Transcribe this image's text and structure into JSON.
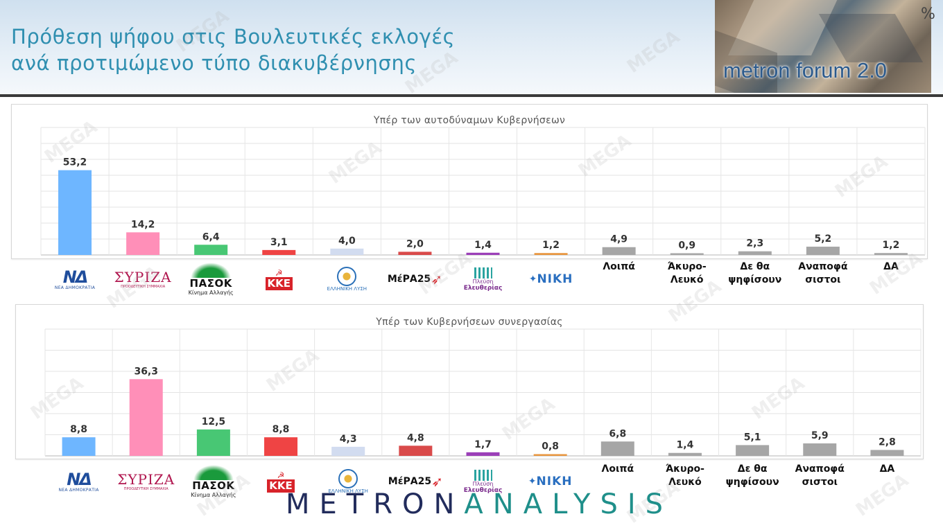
{
  "header": {
    "title_line1": "Πρόθεση ψήφου στις Βουλευτικές εκλογές",
    "title_line2": "ανά προτιμώμενο τύπο διακυβέρνησης",
    "logo_text": "metron forum 2.0",
    "unit": "%"
  },
  "watermark_text": "MEGA",
  "footer": {
    "logo_part1": "METRON",
    "logo_part2": "ANALYSIS"
  },
  "party_logos": {
    "nd": {
      "mark": "ΝΔ",
      "sub": "ΝΕΑ ΔΗΜΟΚΡΑΤΙΑ"
    },
    "syriza": {
      "mark": "ΣΥΡΙΖΑ",
      "sub": "ΠΡΟΟΔΕΥΤΙΚΗ ΣΥΜΜΑΧΙΑ"
    },
    "pasok": {
      "mark": "ΠΑΣΟΚ",
      "sub": "Κίνημα Αλλαγής"
    },
    "kke": {
      "mark": "ΚΚΕ",
      "sym": "☭"
    },
    "elliniki": {
      "sub": "ΕΛΛΗΝΙΚΗ ΛΥΣΗ"
    },
    "mera": {
      "mark": "ΜέΡΑ25"
    },
    "plefsi": {
      "t1": "Πλεύση",
      "t2": "Ελευθερίας"
    },
    "niki": {
      "mark": "ΝΙΚΗ"
    }
  },
  "text_categories": [
    "Λοιπά",
    "Άκυρο-Λευκό",
    "Δε θα ψηφίσουν",
    "Αναποφά σιστοι",
    "ΔΑ"
  ],
  "colors": {
    "nd": "#6eb6ff",
    "syriza": "#ff8fb8",
    "pasok": "#48c774",
    "kke": "#ef4444",
    "elliniki": "#d2dcf0",
    "mera": "#d94a4a",
    "plefsi": "#9b3fb8",
    "niki": "#e8963f",
    "grey": "#a6a6a6"
  },
  "chart_data": [
    {
      "type": "bar",
      "title": "Υπέρ των αυτοδύναμων Κυβερνήσεων",
      "categories": [
        "ΝΔ",
        "ΣΥΡΙΖΑ",
        "ΠΑΣΟΚ",
        "ΚΚΕ",
        "ΕΛΛΗΝΙΚΗ ΛΥΣΗ",
        "ΜέΡΑ25",
        "Πλεύση Ελευθερίας",
        "ΝΙΚΗ",
        "Λοιπά",
        "Άκυρο-Λευκό",
        "Δε θα ψηφίσουν",
        "Αναποφά σιστοι",
        "ΔΑ"
      ],
      "values": [
        53.2,
        14.2,
        6.4,
        3.1,
        4.0,
        2.0,
        1.4,
        1.2,
        4.9,
        0.9,
        2.3,
        5.2,
        1.2
      ],
      "value_labels": [
        "53,2",
        "14,2",
        "6,4",
        "3,1",
        "4,0",
        "2,0",
        "1,4",
        "1,2",
        "4,9",
        "0,9",
        "2,3",
        "5,2",
        "1,2"
      ],
      "ylim": [
        0,
        80
      ],
      "grid": true
    },
    {
      "type": "bar",
      "title": "Υπέρ των Κυβερνήσεων συνεργασίας",
      "categories": [
        "ΝΔ",
        "ΣΥΡΙΖΑ",
        "ΠΑΣΟΚ",
        "ΚΚΕ",
        "ΕΛΛΗΝΙΚΗ ΛΥΣΗ",
        "ΜέΡΑ25",
        "Πλεύση Ελευθερίας",
        "ΝΙΚΗ",
        "Λοιπά",
        "Άκυρο-Λευκό",
        "Δε θα ψηφίσουν",
        "Αναποφά σιστοι",
        "ΔΑ"
      ],
      "values": [
        8.8,
        36.3,
        12.5,
        8.8,
        4.3,
        4.8,
        1.7,
        0.8,
        6.8,
        1.4,
        5.1,
        5.9,
        2.8
      ],
      "value_labels": [
        "8,8",
        "36,3",
        "12,5",
        "8,8",
        "4,3",
        "4,8",
        "1,7",
        "0,8",
        "6,8",
        "1,4",
        "5,1",
        "5,9",
        "2,8"
      ],
      "ylim": [
        0,
        60
      ],
      "grid": true
    }
  ]
}
